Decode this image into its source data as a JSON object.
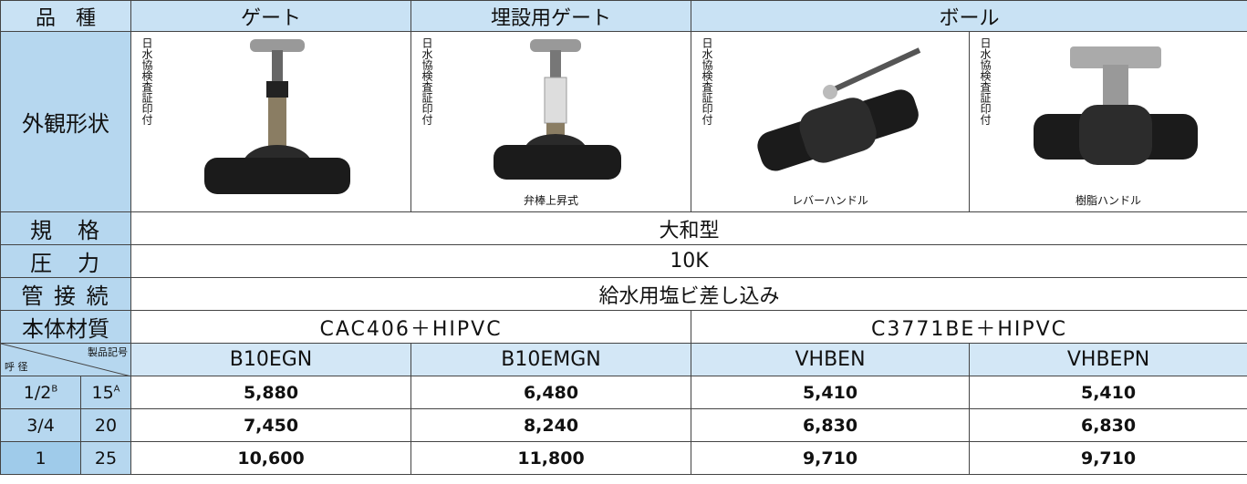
{
  "header": {
    "label": "品　種",
    "groups": [
      "ゲート",
      "埋設用ゲート",
      "ボール"
    ]
  },
  "appearance": {
    "label": "外観形状",
    "products": [
      {
        "stamp": "日水協検査証印付"
      },
      {
        "stamp": "日水協検査証印付",
        "caption": "弁棒上昇式"
      },
      {
        "stamp": "日水協検査証印付",
        "caption": "レバーハンドル"
      },
      {
        "stamp": "日水協検査証印付",
        "caption": "樹脂ハンドル"
      }
    ]
  },
  "specs": [
    {
      "label": "規　格",
      "value": "大和型"
    },
    {
      "label": "圧　力",
      "value": "10K"
    },
    {
      "label": "管 接 続",
      "value": "給水用塩ビ差し込み"
    }
  ],
  "material": {
    "label": "本体材質",
    "values": [
      "CAC406＋HIPVC",
      "C3771BE＋HIPVC"
    ]
  },
  "codes": {
    "corner_top": "製品記号",
    "corner_bottom": "呼 径",
    "values": [
      "B10EGN",
      "B10EMGN",
      "VHBEN",
      "VHBEPN"
    ]
  },
  "sizes": [
    {
      "inch": "1/2",
      "inch_unit": "B",
      "mm": "15",
      "mm_unit": "A",
      "prices": [
        "5,880",
        "6,480",
        "5,410",
        "5,410"
      ]
    },
    {
      "inch": "3/4",
      "mm": "20",
      "prices": [
        "7,450",
        "8,240",
        "6,830",
        "6,830"
      ]
    },
    {
      "inch": "1",
      "mm": "25",
      "prices": [
        "10,600",
        "11,800",
        "9,710",
        "9,710"
      ]
    }
  ]
}
